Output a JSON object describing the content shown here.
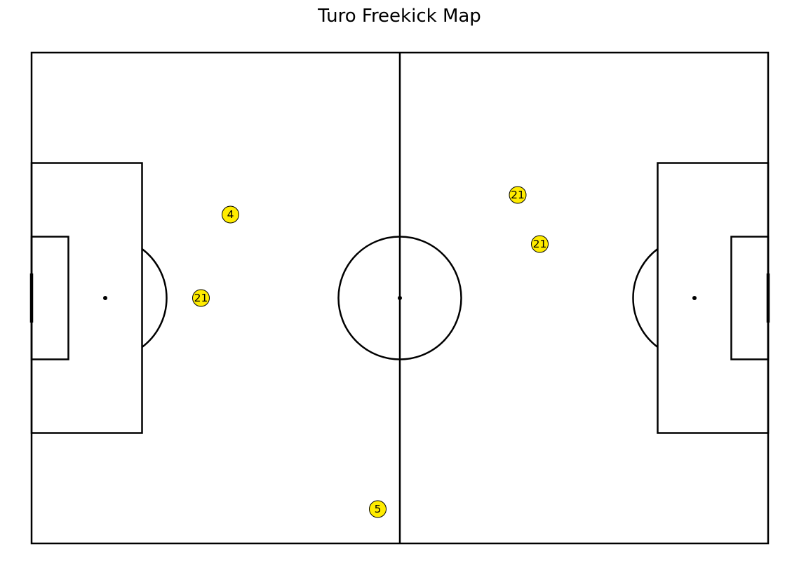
{
  "chart_data": {
    "type": "scatter",
    "title": "Turo Freekick Map",
    "pitch": {
      "length": 120,
      "width": 80,
      "line_color": "#000000",
      "background": "#ffffff"
    },
    "marker_color": "#ffec00",
    "points": [
      {
        "label": "4",
        "x": 32.4,
        "y": 26.4
      },
      {
        "label": "21",
        "x": 27.6,
        "y": 40.0
      },
      {
        "label": "5",
        "x": 56.4,
        "y": 74.4
      },
      {
        "label": "21",
        "x": 79.2,
        "y": 23.2
      },
      {
        "label": "21",
        "x": 82.8,
        "y": 31.2
      }
    ]
  }
}
